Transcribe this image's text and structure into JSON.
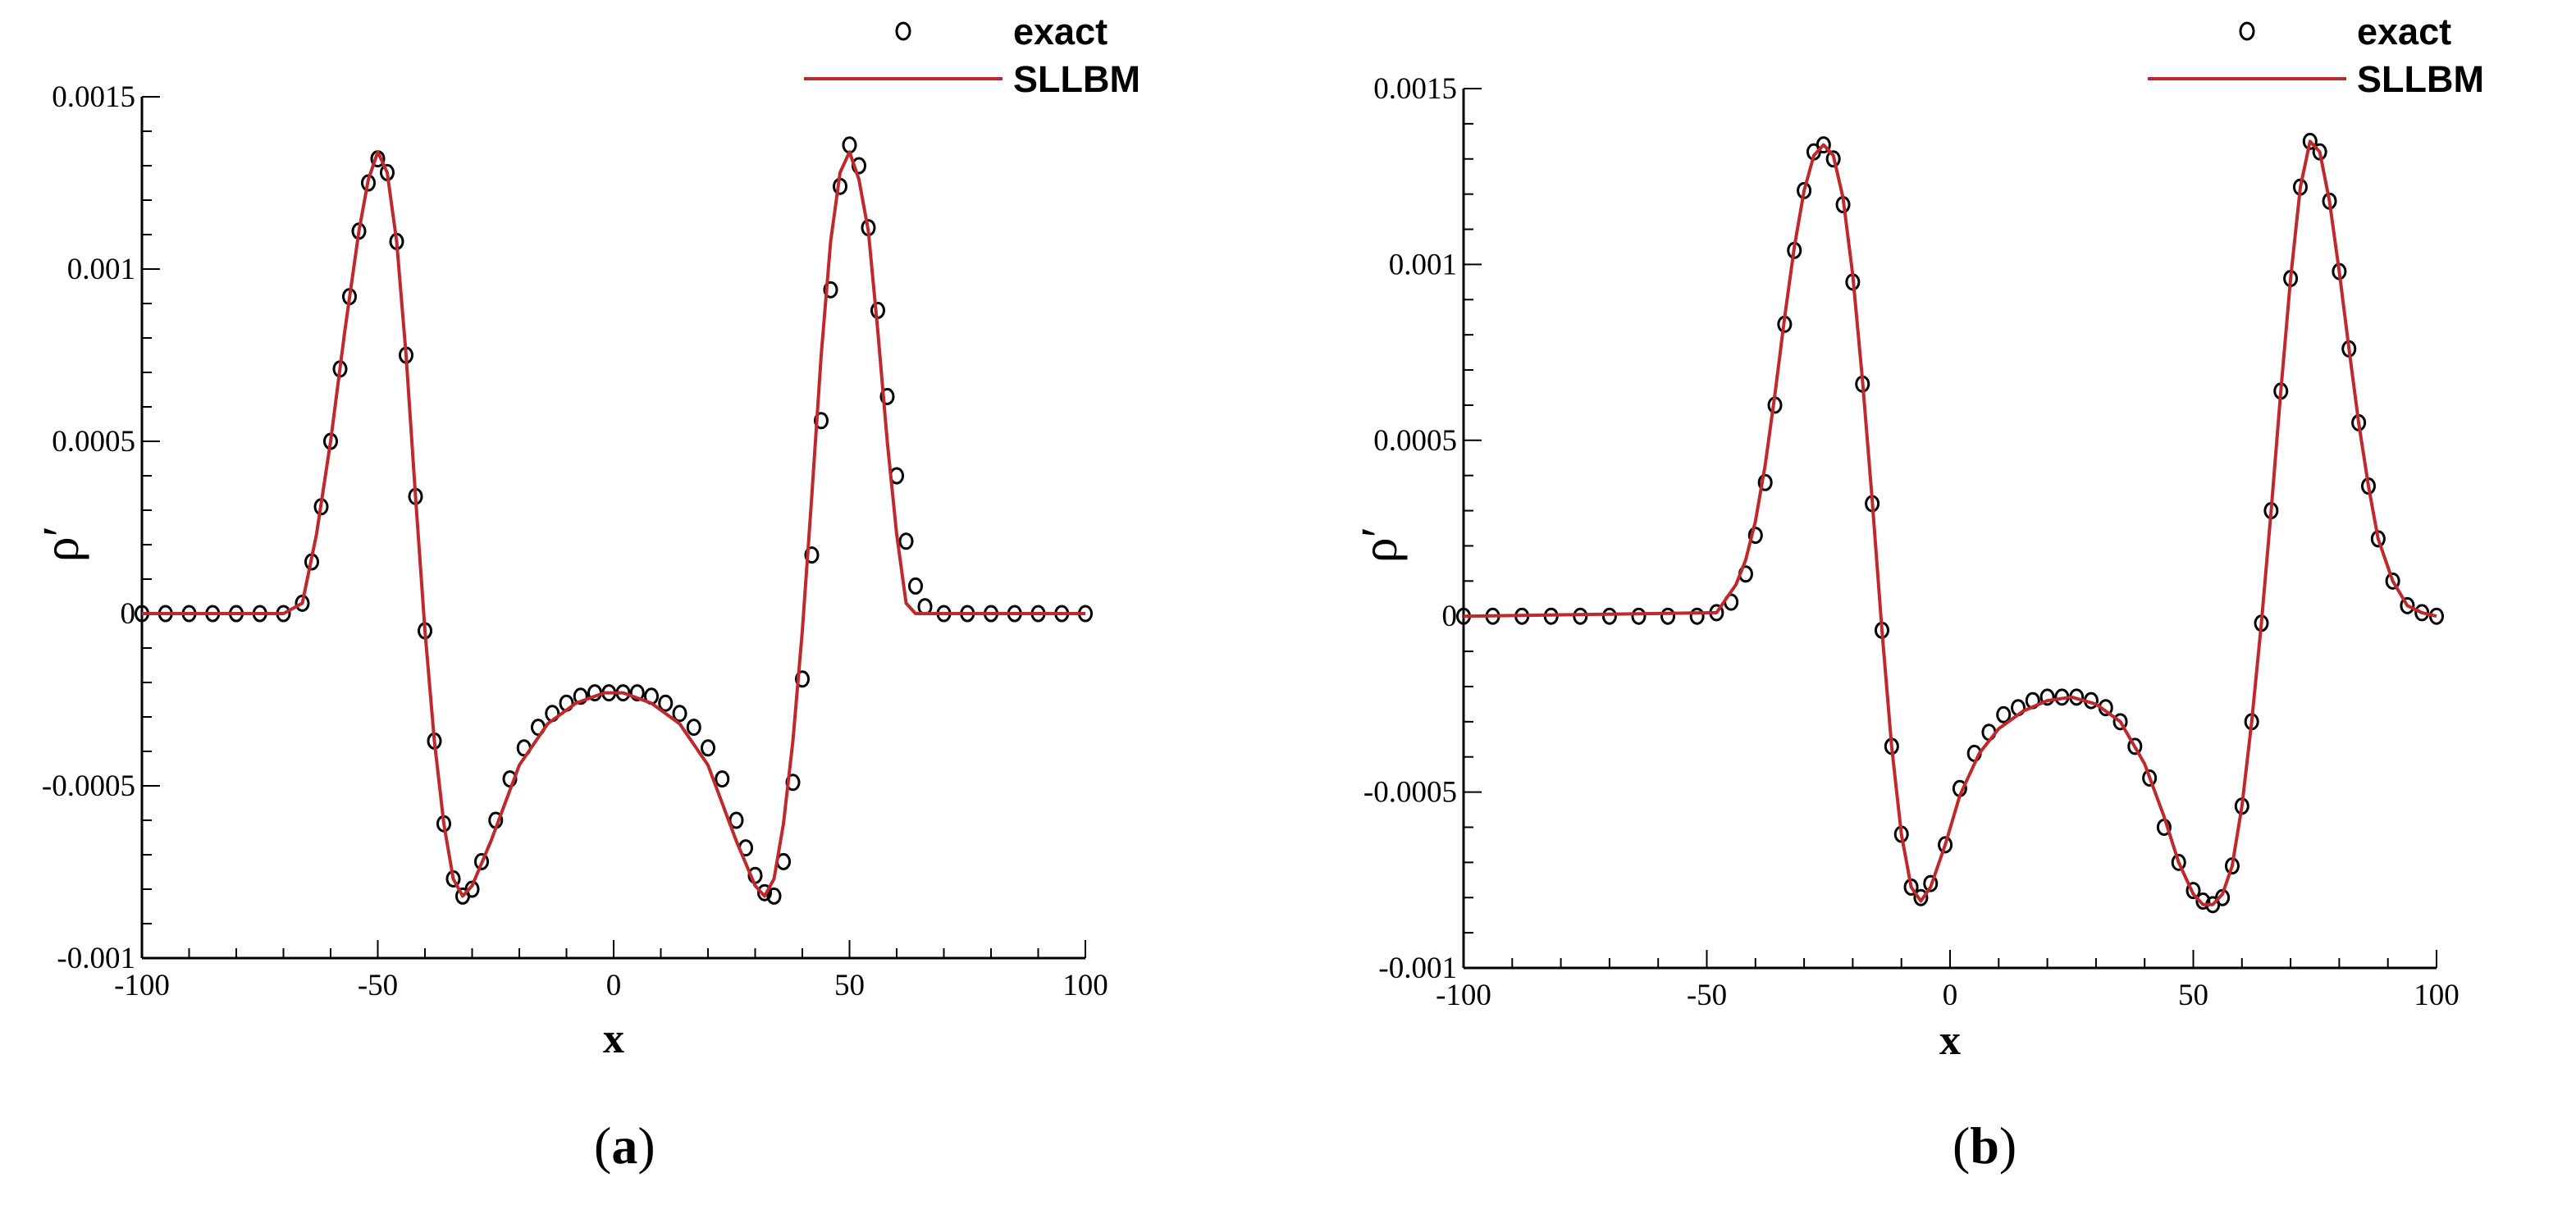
{
  "colors": {
    "line": "#c0292b",
    "marker": "#000000",
    "axis": "#000000"
  },
  "legend": {
    "exact": "exact",
    "sllbm": "SLLBM",
    "placement": "top-right"
  },
  "chart_data": [
    {
      "type": "line",
      "caption_open": "(",
      "caption_letter": "a",
      "caption_close": ")",
      "xlabel": "x",
      "ylabel": "ρ′",
      "xlim": [
        -100,
        100
      ],
      "ylim": [
        -0.001,
        0.0015
      ],
      "xticks": [
        -100,
        -50,
        0,
        50,
        100
      ],
      "xtick_labels": [
        "-100",
        "-50",
        "0",
        "50",
        "100"
      ],
      "yticks": [
        -0.001,
        -0.0005,
        0,
        0.0005,
        0.001,
        0.0015
      ],
      "ytick_labels": [
        "-0.001",
        "-0.0005",
        "0",
        "0.0005",
        "0.001",
        "0.0015"
      ],
      "grid": false,
      "series": [
        {
          "name": "exact",
          "style": "markers",
          "x": [
            -100,
            -95,
            -90,
            -85,
            -80,
            -75,
            -70,
            -66,
            -64,
            -62,
            -60,
            -58,
            -56,
            -54,
            -52,
            -50,
            -48,
            -46,
            -44,
            -42,
            -40,
            -38,
            -36,
            -34,
            -32,
            -30,
            -28,
            -25,
            -22,
            -19,
            -16,
            -13,
            -10,
            -7,
            -4,
            -1,
            2,
            5,
            8,
            11,
            14,
            17,
            20,
            23,
            26,
            28,
            30,
            32,
            34,
            36,
            38,
            40,
            42,
            44,
            46,
            48,
            50,
            52,
            54,
            56,
            58,
            60,
            62,
            64,
            66,
            70,
            75,
            80,
            85,
            90,
            95,
            100
          ],
          "y": [
            0,
            0,
            0,
            0,
            0,
            0,
            0,
            3e-05,
            0.00015,
            0.00031,
            0.0005,
            0.00071,
            0.00092,
            0.00111,
            0.00125,
            0.00132,
            0.00128,
            0.00108,
            0.00075,
            0.00034,
            -5e-05,
            -0.00037,
            -0.00061,
            -0.00077,
            -0.00082,
            -0.0008,
            -0.00072,
            -0.0006,
            -0.00048,
            -0.00039,
            -0.00033,
            -0.00029,
            -0.00026,
            -0.00024,
            -0.00023,
            -0.00023,
            -0.00023,
            -0.00023,
            -0.00024,
            -0.00026,
            -0.00029,
            -0.00033,
            -0.00039,
            -0.00048,
            -0.0006,
            -0.00068,
            -0.00076,
            -0.00081,
            -0.00082,
            -0.00072,
            -0.00049,
            -0.00019,
            0.00017,
            0.00056,
            0.00094,
            0.00124,
            0.00136,
            0.0013,
            0.00112,
            0.00088,
            0.00063,
            0.0004,
            0.00021,
            8e-05,
            2e-05,
            0,
            0,
            0,
            0,
            0,
            0,
            0
          ]
        },
        {
          "name": "SLLBM",
          "style": "line",
          "x": [
            -100,
            -70,
            -66,
            -63,
            -60,
            -57,
            -54,
            -52,
            -50,
            -48,
            -46,
            -44,
            -42,
            -40,
            -38,
            -36,
            -34,
            -32,
            -30,
            -26,
            -20,
            -14,
            -8,
            -2,
            0,
            2,
            8,
            14,
            20,
            26,
            30,
            32,
            34,
            36,
            38,
            40,
            42,
            44,
            46,
            48,
            50,
            52,
            54,
            56,
            58,
            60,
            62,
            64,
            66,
            70,
            100
          ],
          "y": [
            0,
            0,
            3e-05,
            0.00023,
            0.0005,
            0.00082,
            0.00111,
            0.00126,
            0.00134,
            0.00128,
            0.00108,
            0.00075,
            0.00034,
            -5e-05,
            -0.00037,
            -0.00061,
            -0.00077,
            -0.00082,
            -0.00079,
            -0.00066,
            -0.00044,
            -0.00032,
            -0.00026,
            -0.00023,
            -0.00023,
            -0.00023,
            -0.00026,
            -0.00032,
            -0.00044,
            -0.00066,
            -0.00079,
            -0.00082,
            -0.00077,
            -0.00061,
            -0.00037,
            -5e-05,
            0.00034,
            0.00075,
            0.00108,
            0.00128,
            0.00134,
            0.00126,
            0.00111,
            0.00082,
            0.0005,
            0.00023,
            3e-05,
            0,
            0,
            0,
            0
          ]
        }
      ]
    },
    {
      "type": "line",
      "caption_open": "(",
      "caption_letter": "b",
      "caption_close": ")",
      "xlabel": "x",
      "ylabel": "ρ′",
      "xlim": [
        -100,
        100
      ],
      "ylim": [
        -0.001,
        0.0015
      ],
      "xticks": [
        -100,
        -50,
        0,
        50,
        100
      ],
      "xtick_labels": [
        "-100",
        "-50",
        "0",
        "50",
        "100"
      ],
      "yticks": [
        -0.001,
        -0.0005,
        0,
        0.0005,
        0.001,
        0.0015
      ],
      "ytick_labels": [
        "-0.001",
        "-0.0005",
        "0",
        "0.0005",
        "0.001",
        "0.0015"
      ],
      "grid": false,
      "series": [
        {
          "name": "exact",
          "style": "markers",
          "x": [
            -100,
            -94,
            -88,
            -82,
            -76,
            -70,
            -64,
            -58,
            -52,
            -48,
            -45,
            -42,
            -40,
            -38,
            -36,
            -34,
            -32,
            -30,
            -28,
            -26,
            -24,
            -22,
            -20,
            -18,
            -16,
            -14,
            -12,
            -10,
            -8,
            -6,
            -4,
            -1,
            2,
            5,
            8,
            11,
            14,
            17,
            20,
            23,
            26,
            29,
            32,
            35,
            38,
            41,
            44,
            47,
            50,
            52,
            54,
            56,
            58,
            60,
            62,
            64,
            66,
            68,
            70,
            72,
            74,
            76,
            78,
            80,
            82,
            84,
            86,
            88,
            91,
            94,
            97,
            100
          ],
          "y": [
            0,
            0,
            0,
            0,
            0,
            0,
            0,
            0,
            0,
            1e-05,
            4e-05,
            0.00012,
            0.00023,
            0.00038,
            0.0006,
            0.00083,
            0.00104,
            0.00121,
            0.00132,
            0.00134,
            0.0013,
            0.00117,
            0.00095,
            0.00066,
            0.00032,
            -4e-05,
            -0.00037,
            -0.00062,
            -0.00077,
            -0.0008,
            -0.00076,
            -0.00065,
            -0.00049,
            -0.00039,
            -0.00033,
            -0.00028,
            -0.00026,
            -0.00024,
            -0.00023,
            -0.00023,
            -0.00023,
            -0.00024,
            -0.00026,
            -0.0003,
            -0.00037,
            -0.00046,
            -0.0006,
            -0.0007,
            -0.00078,
            -0.00081,
            -0.00082,
            -0.0008,
            -0.00071,
            -0.00054,
            -0.0003,
            -2e-05,
            0.0003,
            0.00064,
            0.00096,
            0.00122,
            0.00135,
            0.00132,
            0.00118,
            0.00098,
            0.00076,
            0.00055,
            0.00037,
            0.00022,
            0.0001,
            3e-05,
            1e-05,
            0
          ]
        },
        {
          "name": "SLLBM",
          "style": "line",
          "x": [
            -100,
            -48,
            -44,
            -42,
            -40,
            -38,
            -36,
            -34,
            -32,
            -30,
            -28,
            -26,
            -24,
            -22,
            -20,
            -18,
            -16,
            -14,
            -12,
            -10,
            -8,
            -6,
            -4,
            -1,
            2,
            6,
            10,
            15,
            20,
            25,
            30,
            35,
            40,
            44,
            47,
            50,
            52,
            54,
            56,
            58,
            60,
            62,
            64,
            66,
            68,
            70,
            72,
            74,
            76,
            78,
            80,
            82,
            84,
            86,
            88,
            91,
            94,
            97,
            100
          ],
          "y": [
            0,
            1e-05,
            9e-05,
            0.00016,
            0.00027,
            0.00043,
            0.00063,
            0.00085,
            0.00105,
            0.00121,
            0.00131,
            0.00134,
            0.00131,
            0.00119,
            0.00097,
            0.00067,
            0.00033,
            -4e-05,
            -0.00037,
            -0.00062,
            -0.00077,
            -0.00081,
            -0.00077,
            -0.00065,
            -0.00051,
            -0.00039,
            -0.00032,
            -0.00027,
            -0.00024,
            -0.00023,
            -0.00025,
            -0.0003,
            -0.00042,
            -0.00057,
            -0.0007,
            -0.00079,
            -0.00082,
            -0.00082,
            -0.00079,
            -0.00071,
            -0.00054,
            -0.0003,
            -2e-05,
            0.0003,
            0.00064,
            0.00096,
            0.00122,
            0.00135,
            0.00132,
            0.00118,
            0.00098,
            0.00076,
            0.00055,
            0.00037,
            0.00022,
            0.0001,
            3e-05,
            1e-05,
            0
          ]
        }
      ]
    }
  ]
}
